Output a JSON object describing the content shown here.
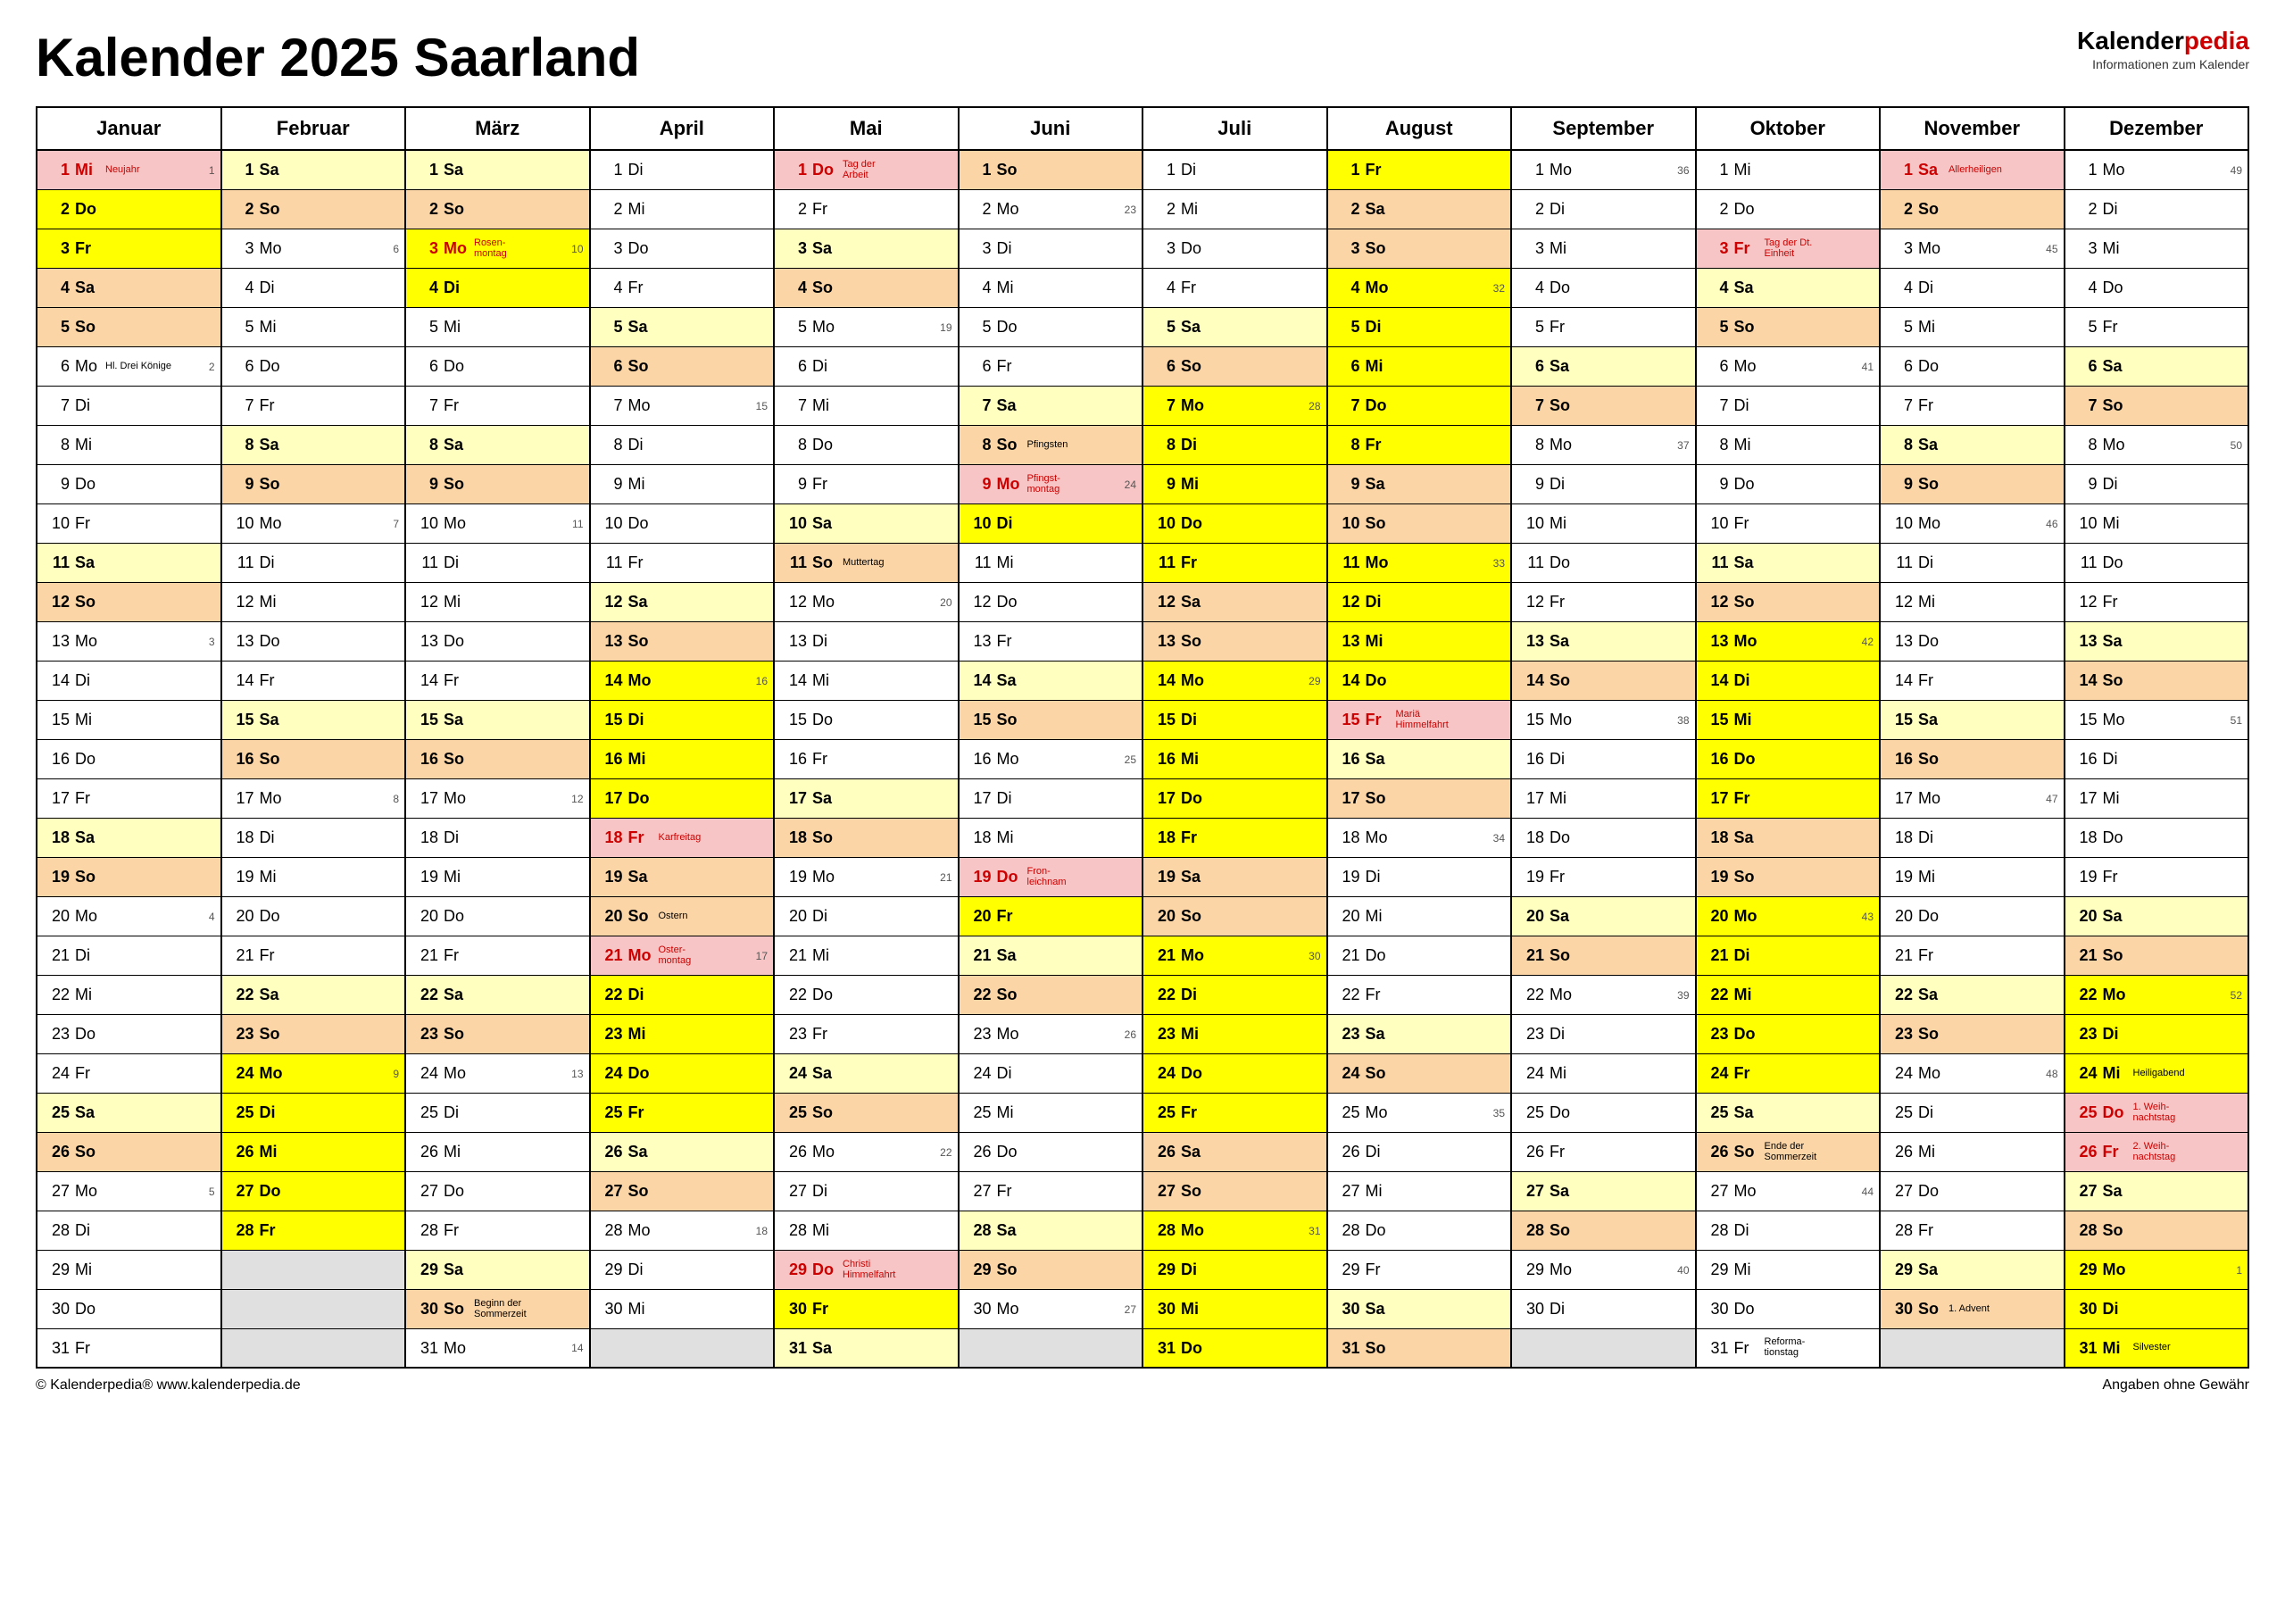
{
  "title": "Kalender 2025 Saarland",
  "logo_main_a": "Kalender",
  "logo_main_b": "pedia",
  "logo_sub": "Informationen zum Kalender",
  "footer_left": "© Kalenderpedia®   www.kalenderpedia.de",
  "footer_right": "Angaben ohne Gewähr",
  "months": [
    "Januar",
    "Februar",
    "März",
    "April",
    "Mai",
    "Juni",
    "Juli",
    "August",
    "September",
    "Oktober",
    "November",
    "Dezember"
  ],
  "weekdays": [
    "Mo",
    "Di",
    "Mi",
    "Do",
    "Fr",
    "Sa",
    "So"
  ],
  "month_days": [
    31,
    28,
    31,
    30,
    31,
    30,
    31,
    31,
    30,
    31,
    30,
    31
  ],
  "start_dow": [
    2,
    5,
    5,
    1,
    3,
    6,
    1,
    4,
    0,
    2,
    5,
    0
  ],
  "colors": {
    "yellow": "bg-yellow",
    "lyellow": "bg-lyellow",
    "orange": "bg-orange",
    "pink": "bg-pink"
  },
  "week_numbers": {
    "0-1": 1,
    "0-6": 2,
    "0-13": 3,
    "0-20": 4,
    "0-27": 5,
    "1-3": 6,
    "1-10": 7,
    "1-17": 8,
    "1-24": 9,
    "2-3": 10,
    "2-10": 11,
    "2-17": 12,
    "2-24": 13,
    "2-31": 14,
    "3-7": 15,
    "3-14": 16,
    "3-21": 17,
    "3-28": 18,
    "4-5": 19,
    "4-12": 20,
    "4-19": 21,
    "4-26": 22,
    "5-2": 23,
    "5-9": 24,
    "5-16": 25,
    "5-23": 26,
    "5-30": 27,
    "6-7": 28,
    "6-14": 29,
    "6-21": 30,
    "6-28": 31,
    "7-4": 32,
    "7-11": 33,
    "7-18": 34,
    "7-25": 35,
    "8-1": 36,
    "8-8": 37,
    "8-15": 38,
    "8-22": 39,
    "8-29": 40,
    "9-6": 41,
    "9-13": 42,
    "9-20": 43,
    "9-27": 44,
    "10-3": 45,
    "10-10": 46,
    "10-17": 47,
    "10-24": 48,
    "11-1": 49,
    "11-8": 50,
    "11-15": 51,
    "11-22": 52,
    "11-29": 1
  },
  "specials": {
    "0-1": {
      "bg": "pink",
      "red": true,
      "note": "Neujahr"
    },
    "0-6": {
      "note": "Hl. Drei Könige",
      "noteBlack": true
    },
    "2-3": {
      "bg": "yellow",
      "red": true,
      "note": "Rosen-\nmontag"
    },
    "2-30": {
      "bg": "orange",
      "note": "Beginn der\nSommerzeit",
      "noteBlack": true
    },
    "3-18": {
      "bg": "pink",
      "red": true,
      "note": "Karfreitag"
    },
    "3-20": {
      "bg": "orange",
      "note": "Ostern",
      "noteBlack": true
    },
    "3-21": {
      "bg": "pink",
      "red": true,
      "note": "Oster-\nmontag"
    },
    "4-1": {
      "bg": "pink",
      "red": true,
      "note": "Tag der\nArbeit"
    },
    "4-11": {
      "bg": "orange",
      "note": "Muttertag",
      "noteBlack": true
    },
    "4-29": {
      "bg": "pink",
      "red": true,
      "note": "Christi\nHimmelfahrt"
    },
    "5-8": {
      "bg": "orange",
      "note": "Pfingsten",
      "noteBlack": true
    },
    "5-9": {
      "bg": "pink",
      "red": true,
      "note": "Pfingst-\nmontag"
    },
    "5-19": {
      "bg": "pink",
      "red": true,
      "note": "Fron-\nleichnam"
    },
    "7-15": {
      "bg": "pink",
      "red": true,
      "note": "Mariä\nHimmelfahrt"
    },
    "9-3": {
      "bg": "pink",
      "red": true,
      "note": "Tag der Dt.\nEinheit"
    },
    "9-26": {
      "bg": "orange",
      "note": "Ende der\nSommerzeit",
      "noteBlack": true
    },
    "9-31": {
      "note": "Reforma-\ntionstag",
      "noteBlack": true
    },
    "10-1": {
      "bg": "pink",
      "red": true,
      "note": "Allerheiligen"
    },
    "10-30": {
      "bg": "orange",
      "note": "1. Advent",
      "noteBlack": true
    },
    "11-24": {
      "bg": "yellow",
      "note": "Heiligabend",
      "noteBlack": true
    },
    "11-25": {
      "bg": "pink",
      "red": true,
      "note": "1. Weih-\nnachtstag"
    },
    "11-26": {
      "bg": "pink",
      "red": true,
      "note": "2. Weih-\nnachtstag"
    },
    "11-31": {
      "bg": "yellow",
      "note": "Silvester",
      "noteBlack": true
    }
  },
  "vacation_yellow": [
    [
      0,
      2,
      3
    ],
    [
      0,
      3,
      4
    ],
    [
      1,
      24,
      28
    ],
    [
      2,
      4,
      4
    ],
    [
      3,
      14,
      25
    ],
    [
      4,
      30,
      30
    ],
    [
      5,
      10,
      10
    ],
    [
      5,
      20,
      20
    ],
    [
      6,
      7,
      31
    ],
    [
      7,
      1,
      14
    ],
    [
      9,
      13,
      24
    ],
    [
      11,
      22,
      23
    ],
    [
      11,
      29,
      30
    ]
  ]
}
